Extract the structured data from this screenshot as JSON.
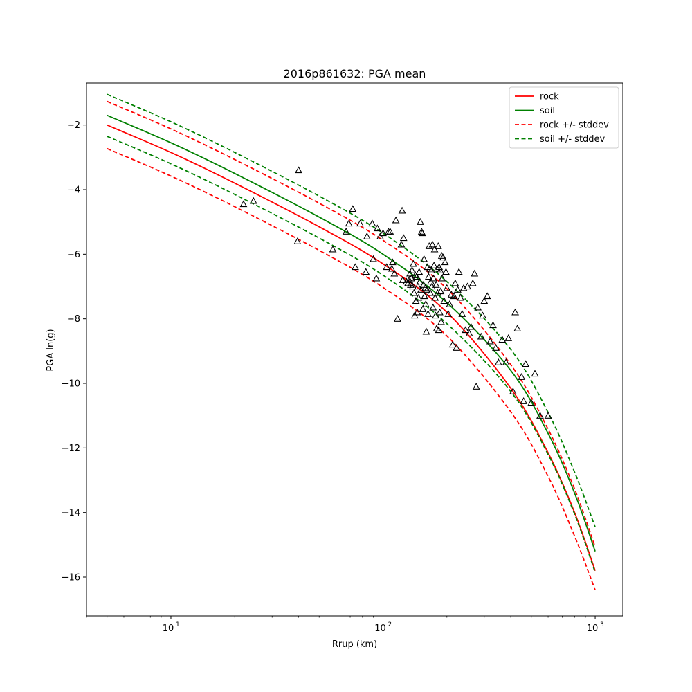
{
  "chart_data": {
    "type": "line",
    "title": "2016p861632: PGA mean",
    "xlabel": "Rrup (km)",
    "ylabel": "PGA ln(g)",
    "xscale": "log",
    "xlim": [
      4,
      1350
    ],
    "ylim": [
      -17.2,
      -0.7
    ],
    "grid": false,
    "legend_position": "top-right",
    "x_ticks": [
      {
        "value": 10,
        "base": "10",
        "exp": "1"
      },
      {
        "value": 100,
        "base": "10",
        "exp": "2"
      },
      {
        "value": 1000,
        "base": "10",
        "exp": "3"
      }
    ],
    "y_ticks": [
      {
        "value": -2,
        "label": "−2"
      },
      {
        "value": -4,
        "label": "−4"
      },
      {
        "value": -6,
        "label": "−6"
      },
      {
        "value": -8,
        "label": "−8"
      },
      {
        "value": -10,
        "label": "−10"
      },
      {
        "value": -12,
        "label": "−12"
      },
      {
        "value": -14,
        "label": "−14"
      },
      {
        "value": -16,
        "label": "−16"
      }
    ],
    "series": [
      {
        "name": "rock",
        "color": "#ff0000",
        "dash": false,
        "x": [
          5,
          10,
          20,
          50,
          100,
          200,
          400,
          600,
          800,
          1000
        ],
        "y": [
          -2.0,
          -2.85,
          -3.8,
          -5.15,
          -6.3,
          -7.8,
          -10.15,
          -12.15,
          -14.0,
          -15.8
        ]
      },
      {
        "name": "soil",
        "color": "#008000",
        "dash": false,
        "x": [
          5,
          10,
          20,
          50,
          100,
          200,
          400,
          600,
          800,
          1000
        ],
        "y": [
          -1.7,
          -2.55,
          -3.5,
          -4.85,
          -6.0,
          -7.5,
          -9.6,
          -11.55,
          -13.4,
          -15.2
        ]
      },
      {
        "name": "rock +/- stddev",
        "color": "#ff0000",
        "dash": true,
        "x": [
          5,
          10,
          20,
          50,
          100,
          200,
          400,
          600,
          800,
          1000
        ],
        "y": [
          -1.27,
          -2.12,
          -3.07,
          -4.42,
          -5.57,
          -7.07,
          -9.42,
          -11.42,
          -13.27,
          -15.07
        ]
      },
      {
        "name": "",
        "color": "#ff0000",
        "dash": true,
        "x": [
          5,
          10,
          20,
          50,
          100,
          200,
          400,
          600,
          800,
          1000
        ],
        "y": [
          -2.73,
          -3.58,
          -4.53,
          -5.88,
          -7.03,
          -8.53,
          -10.88,
          -12.88,
          -14.73,
          -16.4
        ]
      },
      {
        "name": "soil +/- stddev",
        "color": "#008000",
        "dash": true,
        "x": [
          5,
          10,
          20,
          50,
          100,
          200,
          400,
          600,
          800,
          1000
        ],
        "y": [
          -1.05,
          -1.9,
          -2.85,
          -4.2,
          -5.35,
          -6.85,
          -8.95,
          -10.9,
          -12.75,
          -14.45
        ]
      },
      {
        "name": "",
        "color": "#008000",
        "dash": true,
        "x": [
          5,
          10,
          20,
          50,
          100,
          200,
          400,
          600,
          800,
          1000
        ],
        "y": [
          -2.35,
          -3.2,
          -4.15,
          -5.5,
          -6.65,
          -8.15,
          -10.25,
          -12.2,
          -14.05,
          -15.85
        ]
      }
    ],
    "observations": {
      "marker": "triangle",
      "color": "#000000",
      "x": [
        22,
        24.5,
        40,
        39.5,
        58,
        67,
        69,
        72,
        74,
        78,
        83,
        84,
        89,
        90,
        93,
        94,
        97,
        100,
        104,
        106,
        108,
        110,
        111,
        113,
        115,
        117,
        122,
        123,
        124,
        125,
        129,
        131,
        133,
        134,
        135,
        136,
        137,
        138,
        139,
        140,
        141,
        142,
        143,
        144,
        145,
        146,
        147,
        148,
        149,
        150,
        151,
        152,
        153,
        154,
        155,
        156,
        157,
        158,
        159,
        160,
        161,
        162,
        163,
        164,
        165,
        166,
        167,
        168,
        169,
        170,
        171,
        172,
        173,
        174,
        175,
        176,
        177,
        178,
        179,
        180,
        181,
        182,
        183,
        184,
        185,
        186,
        187,
        188,
        189,
        190,
        192,
        194,
        196,
        198,
        200,
        203,
        206,
        210,
        213,
        216,
        219,
        222,
        225,
        228,
        232,
        236,
        240,
        245,
        250,
        255,
        260,
        265,
        270,
        275,
        280,
        290,
        295,
        300,
        310,
        320,
        330,
        340,
        350,
        365,
        380,
        390,
        410,
        420,
        430,
        450,
        460,
        470,
        500,
        520,
        550,
        600
      ],
      "y": [
        -4.45,
        -4.35,
        -3.4,
        -5.6,
        -5.85,
        -5.3,
        -5.05,
        -4.6,
        -6.4,
        -5.05,
        -6.55,
        -5.45,
        -5.05,
        -6.15,
        -6.75,
        -5.2,
        -5.45,
        -5.35,
        -6.4,
        -5.3,
        -5.3,
        -6.45,
        -6.25,
        -6.6,
        -4.95,
        -8.0,
        -5.7,
        -4.65,
        -6.8,
        -5.5,
        -6.85,
        -6.9,
        -6.8,
        -6.6,
        -6.95,
        -6.75,
        -6.5,
        -7.0,
        -6.3,
        -7.2,
        -7.9,
        -6.65,
        -7.45,
        -6.7,
        -7.8,
        -7.0,
        -7.35,
        -6.55,
        -6.85,
        -5.0,
        -7.1,
        -5.3,
        -5.35,
        -7.7,
        -6.95,
        -6.15,
        -7.3,
        -7.05,
        -7.55,
        -8.4,
        -7.1,
        -6.4,
        -7.85,
        -6.7,
        -5.75,
        -6.45,
        -7.2,
        -6.85,
        -6.5,
        -7.0,
        -5.7,
        -7.65,
        -6.75,
        -6.35,
        -5.85,
        -7.35,
        -7.9,
        -6.95,
        -8.3,
        -6.45,
        -7.2,
        -5.75,
        -8.35,
        -6.4,
        -7.8,
        -6.5,
        -7.15,
        -8.1,
        -6.05,
        -6.75,
        -6.1,
        -7.45,
        -6.25,
        -6.55,
        -7.05,
        -7.85,
        -7.55,
        -7.25,
        -8.8,
        -7.3,
        -6.9,
        -8.9,
        -7.1,
        -6.55,
        -7.35,
        -7.85,
        -7.05,
        -8.35,
        -7.0,
        -8.45,
        -8.25,
        -6.9,
        -6.6,
        -10.1,
        -7.65,
        -8.55,
        -7.9,
        -7.45,
        -7.3,
        -8.7,
        -8.2,
        -8.9,
        -9.35,
        -8.65,
        -9.35,
        -8.6,
        -10.25,
        -7.8,
        -8.3,
        -9.8,
        -10.55,
        -9.4,
        -10.6,
        -9.7,
        -11.0,
        -11.0
      ]
    },
    "legend": [
      "rock",
      "soil",
      "rock +/- stddev",
      "soil +/- stddev"
    ]
  }
}
